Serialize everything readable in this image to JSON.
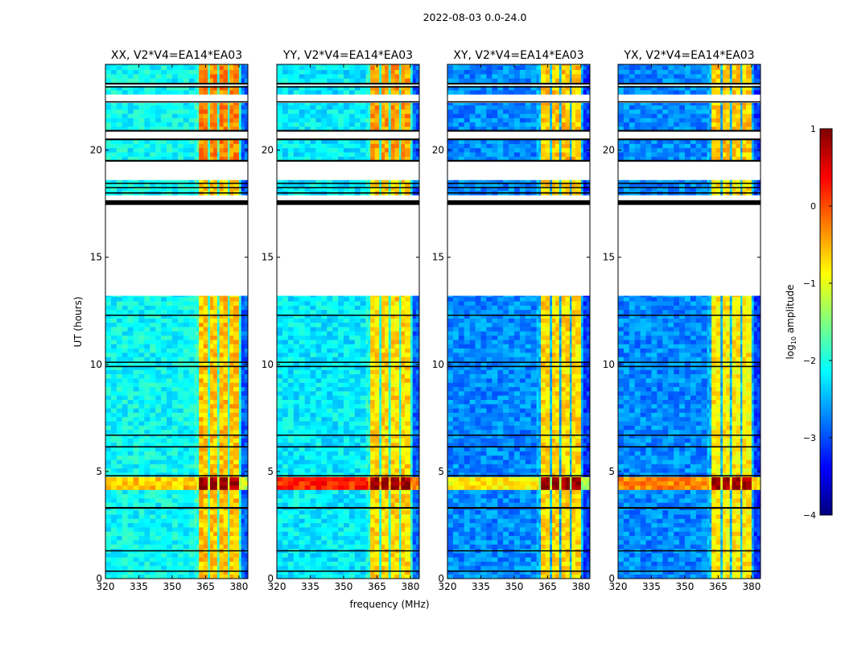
{
  "chart_data": {
    "type": "heatmap",
    "title": "2022-08-03 0.0-24.0",
    "xlabel": "frequency (MHz)",
    "ylabel": "UT (hours)",
    "xlim": [
      320,
      384
    ],
    "ylim": [
      0,
      24
    ],
    "xticks": [
      "320",
      "335",
      "350",
      "365",
      "380"
    ],
    "xtick_values": [
      320,
      335,
      350,
      365,
      380
    ],
    "yticks": [
      "0",
      "5",
      "10",
      "15",
      "20"
    ],
    "ytick_values": [
      0,
      5,
      10,
      15,
      20
    ],
    "colorbar": {
      "label_prefix": "log",
      "label_sub": "10",
      "label_suffix": " amplitude",
      "range": [
        -4,
        1
      ],
      "ticks": [
        "1",
        "0",
        "−1",
        "−2",
        "−3",
        "−4"
      ],
      "tick_values": [
        1,
        0,
        -1,
        -2,
        -3,
        -4
      ]
    },
    "data_segments_ut": [
      [
        0,
        3.3
      ],
      [
        3.35,
        13.2
      ],
      [
        17.9,
        18.6
      ],
      [
        19.5,
        20.5
      ],
      [
        20.9,
        22.2
      ],
      [
        22.6,
        23.0
      ],
      [
        23.15,
        24
      ]
    ],
    "flagged_lines_ut": [
      [
        0.35,
        0.05
      ],
      [
        1.3,
        0.05
      ],
      [
        3.3,
        0.08
      ],
      [
        4.8,
        0.06
      ],
      [
        6.15,
        0.06
      ],
      [
        6.7,
        0.04
      ],
      [
        9.9,
        0.06
      ],
      [
        10.1,
        0.05
      ],
      [
        12.3,
        0.04
      ],
      [
        17.55,
        0.22
      ],
      [
        18.0,
        0.06
      ],
      [
        18.25,
        0.05
      ],
      [
        18.45,
        0.05
      ],
      [
        19.5,
        0.08
      ],
      [
        20.5,
        0.08
      ],
      [
        20.9,
        0.08
      ],
      [
        22.25,
        0.06
      ],
      [
        22.95,
        0.06
      ],
      [
        23.1,
        0.08
      ]
    ],
    "rfi_burst_ut": [
      4.35,
      4.75
    ],
    "panels": [
      {
        "title": "XX, V2*V4=EA14*EA03",
        "low_band_level": -2.1,
        "high_band_level": -0.6,
        "top_high_level": -0.3,
        "edge_level": -2.9,
        "rfi_low_level": -0.6,
        "rfi_high_level": 0.9
      },
      {
        "title": "YY, V2*V4=EA14*EA03",
        "low_band_level": -2.2,
        "high_band_level": -0.7,
        "top_high_level": -0.4,
        "edge_level": -2.9,
        "rfi_low_level": 0.2,
        "rfi_high_level": 0.9
      },
      {
        "title": "XY, V2*V4=EA14*EA03",
        "low_band_level": -2.7,
        "high_band_level": -0.7,
        "top_high_level": -0.6,
        "edge_level": -3.1,
        "rfi_low_level": -0.8,
        "rfi_high_level": 0.9
      },
      {
        "title": "YX, V2*V4=EA14*EA03",
        "low_band_level": -2.7,
        "high_band_level": -0.8,
        "top_high_level": -0.6,
        "edge_level": -3.1,
        "rfi_low_level": -0.3,
        "rfi_high_level": 0.9
      }
    ],
    "channel_gaps_mhz": [
      361,
      366,
      370.7,
      375.3,
      380.5
    ]
  }
}
